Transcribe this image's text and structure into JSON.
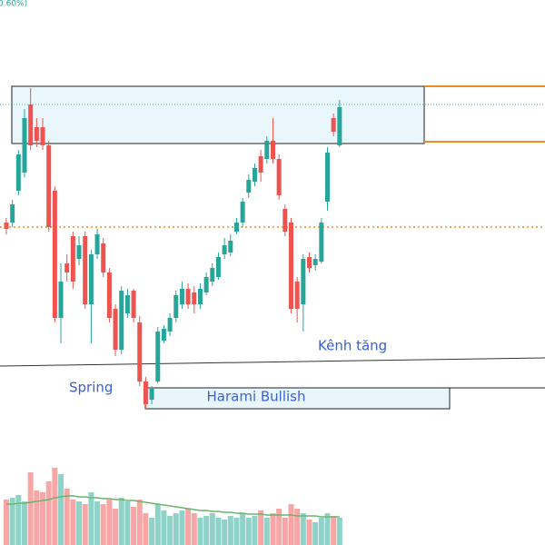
{
  "chart_data": {
    "type": "candlestick",
    "header_text": "0.60%)",
    "open": [
      355,
      355,
      390,
      410,
      485,
      460,
      460,
      440,
      390,
      250,
      310,
      340,
      315,
      340,
      265,
      320,
      332,
      300,
      260,
      215,
      255,
      280,
      245,
      180,
      160,
      180,
      225,
      235,
      250,
      265,
      282,
      278,
      265,
      278,
      290,
      295,
      320,
      322,
      345,
      355,
      388,
      400,
      428,
      425,
      445,
      425,
      370,
      355,
      290,
      265,
      317,
      308,
      312,
      378,
      470,
      440
    ],
    "high": [
      360,
      380,
      435,
      480,
      503,
      470,
      470,
      445,
      395,
      310,
      320,
      345,
      340,
      345,
      325,
      348,
      338,
      305,
      265,
      285,
      282,
      282,
      252,
      185,
      175,
      240,
      242,
      255,
      280,
      290,
      288,
      285,
      288,
      300,
      310,
      322,
      338,
      342,
      360,
      382,
      408,
      420,
      435,
      450,
      470,
      430,
      375,
      360,
      295,
      320,
      322,
      320,
      360,
      438,
      475,
      490
    ],
    "low": [
      342,
      350,
      385,
      405,
      435,
      438,
      435,
      345,
      245,
      222,
      290,
      282,
      308,
      260,
      222,
      315,
      295,
      245,
      208,
      210,
      250,
      245,
      175,
      150,
      155,
      178,
      222,
      230,
      245,
      260,
      260,
      255,
      260,
      275,
      285,
      292,
      315,
      318,
      342,
      350,
      382,
      395,
      400,
      420,
      420,
      380,
      340,
      255,
      245,
      235,
      300,
      302,
      310,
      368,
      450,
      438
    ],
    "close": [
      348,
      375,
      430,
      470,
      440,
      445,
      440,
      350,
      250,
      290,
      300,
      290,
      330,
      265,
      320,
      342,
      300,
      250,
      215,
      280,
      275,
      250,
      180,
      155,
      172,
      235,
      238,
      250,
      275,
      282,
      265,
      265,
      282,
      295,
      305,
      317,
      330,
      335,
      355,
      378,
      402,
      415,
      410,
      445,
      425,
      385,
      345,
      260,
      260,
      315,
      305,
      315,
      355,
      432,
      455,
      482
    ],
    "volume": [
      50,
      52,
      55,
      48,
      80,
      60,
      58,
      70,
      85,
      78,
      62,
      50,
      48,
      45,
      58,
      48,
      45,
      50,
      40,
      52,
      48,
      42,
      50,
      35,
      30,
      45,
      38,
      32,
      35,
      38,
      40,
      35,
      30,
      32,
      35,
      30,
      28,
      32,
      30,
      35,
      30,
      32,
      38,
      30,
      35,
      40,
      30,
      45,
      40,
      35,
      28,
      25,
      30,
      35,
      32,
      30
    ],
    "volume_ma": [
      45,
      45,
      46,
      46,
      47,
      48,
      49,
      50,
      52,
      53,
      54,
      54,
      53,
      53,
      52,
      52,
      51,
      51,
      50,
      50,
      49,
      49,
      48,
      47,
      46,
      45,
      44,
      43,
      42,
      41,
      40,
      39,
      38,
      38,
      37,
      37,
      36,
      36,
      35,
      35,
      34,
      34,
      34,
      33,
      33,
      33,
      33,
      33,
      32,
      32,
      32,
      32,
      31,
      31,
      31,
      31
    ],
    "ylim": [
      0,
      600
    ],
    "up_color": "#26a69a",
    "down_color": "#ef5350",
    "volume_up_color": "#8fd3c8",
    "volume_down_color": "#f7a6a5",
    "ma_color": "#6db36d",
    "zone": [
      442,
      505
    ],
    "zone_levels": [
      505,
      444
    ],
    "dotted_level": 485,
    "orange_level": 350,
    "trendline": [
      197,
      206
    ],
    "harami_box": [
      150,
      173
    ],
    "annotations": [
      "Kênh tăng",
      "Spring",
      "Harami Bullish"
    ]
  }
}
